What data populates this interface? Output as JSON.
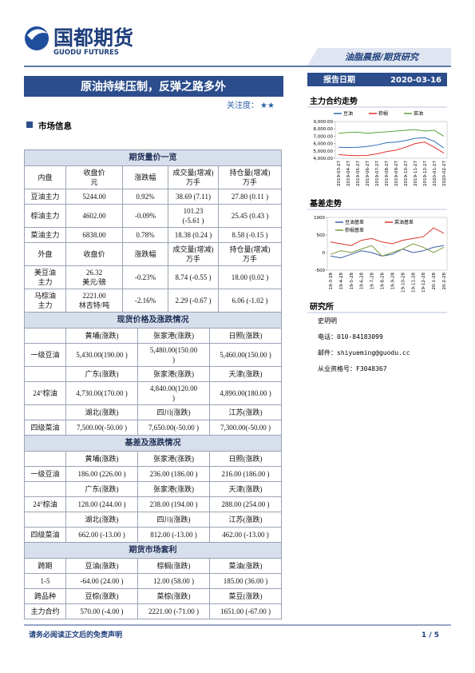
{
  "header": {
    "logo_cn": "国都期货",
    "logo_en": "GUODU FUTURES",
    "banner": "油脂晨报/期货研究"
  },
  "report": {
    "title": "原油持续压制，反弹之路多外",
    "attention_label": "关注度：",
    "attention_stars": "★★",
    "date_label": "报告日期",
    "date": "2020-03-16"
  },
  "section_title": "市场信息",
  "tables": [
    {
      "title": "期货量价一览",
      "rows": [
        [
          "内盘",
          "收盘价\n元",
          "涨跌幅",
          "成交量(增减)\n万手",
          "持仓量(增减)\n万手"
        ],
        [
          "豆油主力",
          "5244.00",
          "0.92%",
          "38.69 (7.11)",
          "27.80 (0.11 )"
        ],
        [
          "棕油主力",
          "4602.00",
          "-0.09%",
          "101.23\n(-5.61 )",
          "25.45 (0.43 )"
        ],
        [
          "菜油主力",
          "6838.00",
          "0.78%",
          "18.38 (0.24 )",
          "8.58 (-0.15 )"
        ],
        [
          "外盘",
          "收盘价",
          "涨跌幅",
          "成交量(增减)\n万手",
          "持仓量(增减)\n万手"
        ],
        [
          "美豆油\n主力",
          "26.32\n美元/磅",
          "-0.23%",
          "8.74 (-0.55 )",
          "18.00 (0.02 )"
        ],
        [
          "马棕油\n主力",
          "2221.00\n林吉特/吨",
          "-2.16%",
          "2.29 (-0.67 )",
          "6.06 (-1.02 )"
        ]
      ]
    },
    {
      "title": "现货价格及涨跌情况",
      "groups": [
        {
          "label": "一级豆油",
          "heads": [
            "黄埔(涨跌)",
            "张家港(涨跌)",
            "日照(涨跌)"
          ],
          "values": [
            "5,430.00(190.00 )",
            "5,480.00(150.00\n)",
            "5,460.00(150.00 )"
          ]
        },
        {
          "label": "24°棕油",
          "heads": [
            "广东(涨跌)",
            "张家港(涨跌)",
            "天津(涨跌)"
          ],
          "values": [
            "4,730.00(170.00 )",
            "4,840.00(120.00\n)",
            "4,890.00(180.00 )"
          ]
        },
        {
          "label": "四级菜油",
          "heads": [
            "湖北(涨跌)",
            "四川(涨跌)",
            "江苏(涨跌)"
          ],
          "values": [
            "7,500.00(-50.00 )",
            "7,650.00(-50.00 )",
            "7,300.00(-50.00 )"
          ]
        }
      ]
    },
    {
      "title": "基差及涨跌情况",
      "groups": [
        {
          "label": "一级豆油",
          "heads": [
            "黄埔(涨跌)",
            "张家港(涨跌)",
            "日照(涨跌)"
          ],
          "values": [
            "186.00 (226.00 )",
            "236.00 (186.00 )",
            "216.00 (186.00 )"
          ]
        },
        {
          "label": "24°棕油",
          "heads": [
            "广东(涨跌)",
            "张家港(涨跌)",
            "天津(涨跌)"
          ],
          "values": [
            "128.00 (244.00 )",
            "238.00 (194.00 )",
            "288.00 (254.00 )"
          ]
        },
        {
          "label": "四级菜油",
          "heads": [
            "湖北(涨跌)",
            "四川(涨跌)",
            "江苏(涨跌)"
          ],
          "values": [
            "662.00 (-13.00 )",
            "812.00 (-13.00 )",
            "462.00 (-13.00 )"
          ]
        }
      ]
    },
    {
      "title": "期货市场套利",
      "rows": [
        [
          "跨期",
          "豆油(涨跌)",
          "棕榈(涨跌)",
          "菜油(涨跌)"
        ],
        [
          "1-5",
          "-64.00 (24.00 )",
          "12.00 (58.00 )",
          "185.00    (36.00 )"
        ],
        [
          "跨品种",
          "豆棕(涨跌)",
          "菜棕(涨跌)",
          "菜豆(涨跌)"
        ],
        [
          "主力合约",
          "570.00 (-4.00 )",
          "2221.00 (-71.00 )",
          "1651.00 (-67.00 )"
        ]
      ]
    }
  ],
  "charts": [
    {
      "title": "主力合约走势",
      "type": "line",
      "x_labels": [
        "2019-03-27",
        "2019-04-27",
        "2019-05-27",
        "2019-06-27",
        "2019-07-27",
        "2019-08-27",
        "2019-09-27",
        "2019-10-27",
        "2019-11-27",
        "2019-12-27",
        "2020-01-27",
        "2020-02-27"
      ],
      "ylim": [
        4000,
        9000
      ],
      "yticks": [
        {
          "value": 9000,
          "label": "9,000.00"
        },
        {
          "value": 8000,
          "label": "8,000.00"
        },
        {
          "value": 7000,
          "label": "7,000.00"
        },
        {
          "value": 6000,
          "label": "6,000.00"
        },
        {
          "value": 5000,
          "label": "5,000.00"
        },
        {
          "value": 4000,
          "label": "4,000.00"
        }
      ],
      "series": [
        {
          "name": "豆油",
          "color": "#2f6db5",
          "values": [
            5500,
            5450,
            5500,
            5600,
            5800,
            6100,
            6200,
            6400,
            6700,
            6800,
            6300,
            5400
          ]
        },
        {
          "name": "棕榈",
          "color": "#e0342f",
          "values": [
            4500,
            4400,
            4350,
            4400,
            4600,
            4900,
            5100,
            5500,
            6000,
            6200,
            5500,
            4700
          ]
        },
        {
          "name": "菜油",
          "color": "#5aa33c",
          "values": [
            7400,
            7500,
            7550,
            7400,
            7500,
            7600,
            7700,
            7800,
            7900,
            7700,
            7800,
            7000
          ]
        }
      ]
    },
    {
      "title": "基差走势",
      "type": "line",
      "x_labels": [
        "19-3-28",
        "19-4-28",
        "19-5-28",
        "19-6-28",
        "19-7-28",
        "19-8-28",
        "19-9-28",
        "19-10-28",
        "19-11-28",
        "19-12-28",
        "20-1-28",
        "20-2-28"
      ],
      "ylim": [
        -500,
        1000
      ],
      "yticks": [
        1000,
        500,
        0,
        -500
      ],
      "series": [
        {
          "name": "豆油基差",
          "color": "#3a5fa8",
          "values": [
            -100,
            -150,
            -50,
            50,
            0,
            -100,
            -50,
            100,
            0,
            50,
            150,
            200
          ]
        },
        {
          "name": "菜油基差",
          "color": "#d9342b",
          "values": [
            300,
            250,
            200,
            350,
            400,
            300,
            250,
            350,
            400,
            450,
            700,
            550
          ]
        },
        {
          "name": "棕榈基差",
          "color": "#7a9a3a",
          "values": [
            -50,
            50,
            0,
            100,
            200,
            -100,
            0,
            100,
            250,
            150,
            0,
            150
          ]
        }
      ]
    }
  ],
  "research": {
    "title": "研究所",
    "name": "史玥明",
    "phone": "电话：010-84183099",
    "email": "邮件：shiyueming@guodu.cc",
    "license": "从业资格号：F3048367"
  },
  "footer": {
    "disclaimer": "请务必阅读正文后的免责声明",
    "page": "1 / 5"
  }
}
